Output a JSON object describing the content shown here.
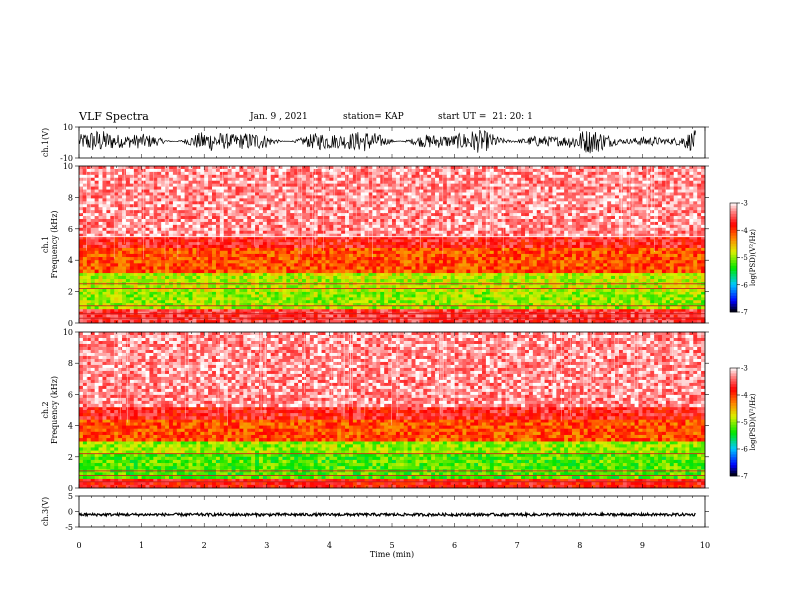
{
  "header": {
    "title": "VLF Spectra",
    "date": "Jan. 9 , 2021",
    "station": "station= KAP",
    "start_label": "start UT =",
    "start_time": "21: 20: 1"
  },
  "chart_data": [
    {
      "type": "line",
      "id": "ch1-waveform",
      "ylabel": "ch.1(V)",
      "ylim": [
        -10,
        10
      ],
      "yticks": [
        10,
        -10
      ],
      "xlim": [
        0,
        10
      ],
      "description_values": "dense oscillating waveform, amplitude roughly -5 to 7 V"
    },
    {
      "type": "heatmap",
      "id": "ch1-spectrogram",
      "ylabel": "ch.1\nFrequency (kHz)",
      "ylim": [
        0,
        10
      ],
      "yticks": [
        0,
        2,
        4,
        6,
        8,
        10
      ],
      "xlim": [
        0,
        10
      ],
      "bands": [
        {
          "from": 0.0,
          "to": 0.9,
          "level": -3.6
        },
        {
          "from": 0.9,
          "to": 2.0,
          "level": -5.0
        },
        {
          "from": 2.0,
          "to": 3.2,
          "level": -4.9
        },
        {
          "from": 3.2,
          "to": 4.8,
          "level": -4.1
        },
        {
          "from": 4.8,
          "to": 5.5,
          "level": -3.7
        },
        {
          "from": 5.5,
          "to": 10.0,
          "level": -3.3
        }
      ],
      "lines_khz": [
        0.3,
        0.6,
        1.1,
        2.2,
        2.5,
        5.5
      ],
      "colorbar": {
        "label": "log(PSD)(V²/Hz)",
        "min": -7,
        "max": -3,
        "ticks": [
          -3,
          -4,
          -5,
          -6,
          -7
        ]
      }
    },
    {
      "type": "heatmap",
      "id": "ch2-spectrogram",
      "ylabel": "ch.2\nFrequency (kHz)",
      "ylim": [
        0,
        10
      ],
      "yticks": [
        0,
        2,
        4,
        6,
        8,
        10
      ],
      "xlim": [
        0,
        10
      ],
      "bands": [
        {
          "from": 0.0,
          "to": 0.6,
          "level": -3.8
        },
        {
          "from": 0.6,
          "to": 2.2,
          "level": -5.2
        },
        {
          "from": 2.2,
          "to": 3.0,
          "level": -5.0
        },
        {
          "from": 3.0,
          "to": 4.4,
          "level": -4.1
        },
        {
          "from": 4.4,
          "to": 5.2,
          "level": -3.7
        },
        {
          "from": 5.2,
          "to": 10.0,
          "level": -3.3
        }
      ],
      "lines_khz": [
        0.4,
        0.8,
        1.1,
        2.2
      ],
      "colorbar": {
        "label": "log(PSD)(V²/Hz)",
        "min": -7,
        "max": -3,
        "ticks": [
          -3,
          -4,
          -5,
          -6,
          -7
        ]
      }
    },
    {
      "type": "line",
      "id": "ch3-waveform",
      "ylabel": "ch.3(V)",
      "ylim": [
        -5,
        5
      ],
      "yticks": [
        5,
        0,
        -5
      ],
      "xlim": [
        0,
        10
      ],
      "description_values": "near-constant signal around -1 V with small noise"
    }
  ],
  "xaxis": {
    "label": "Time (min)",
    "ticks": [
      0,
      1,
      2,
      3,
      4,
      5,
      6,
      7,
      8,
      9,
      10
    ]
  }
}
